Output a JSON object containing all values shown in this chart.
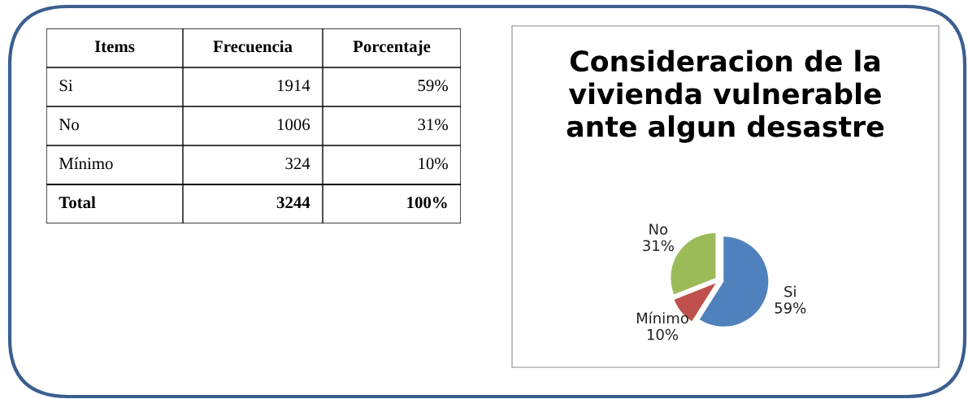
{
  "chart_data": [
    {
      "type": "other",
      "data_labels": true,
      "xlabel": "Items",
      "categories": [
        "Si",
        "No",
        "Mínimo",
        "Total"
      ],
      "series": [
        {
          "name": "Frecuencia",
          "values": [
            1914,
            1006,
            324,
            3244
          ]
        },
        {
          "name": "Porcentaje",
          "values": [
            59,
            31,
            10,
            100
          ],
          "value_labels": [
            "59%",
            "31%",
            "10%",
            "100%"
          ]
        }
      ]
    },
    {
      "type": "pie",
      "title": "Consideracion de la\nvivienda vulnerable\nante algun desastre",
      "categories": [
        "Si",
        "Mínimo",
        "No"
      ],
      "values": [
        59,
        10,
        31
      ],
      "colors": [
        "#4f81bd",
        "#c0504d",
        "#9bbb59"
      ],
      "value_labels": [
        "59%",
        "10%",
        "31%"
      ]
    }
  ]
}
